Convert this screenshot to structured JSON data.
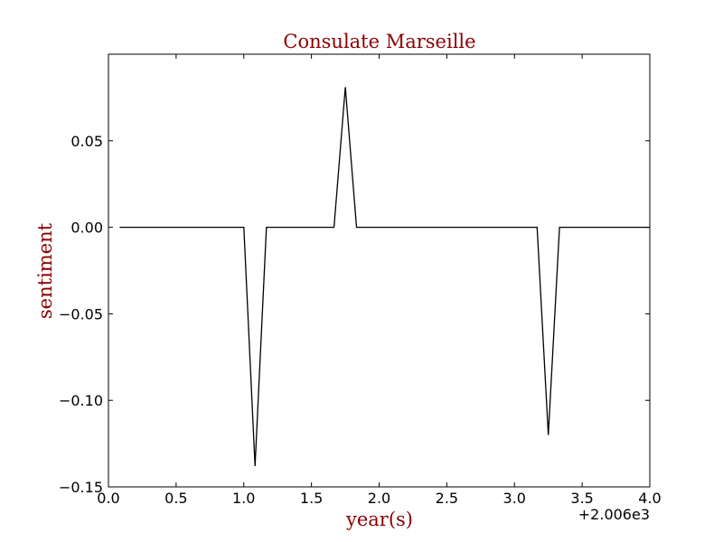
{
  "chart_data": {
    "type": "line",
    "title": "Consulate Marseille",
    "xlabel": "year(s)",
    "ylabel": "sentiment",
    "x_offset_label": "+2.006e3",
    "xlim": [
      0.0,
      4.0
    ],
    "ylim": [
      -0.15,
      0.1
    ],
    "x_tick_values": [
      0.0,
      0.5,
      1.0,
      1.5,
      2.0,
      2.5,
      3.0,
      3.5,
      4.0
    ],
    "x_tick_labels": [
      "0.0",
      "0.5",
      "1.0",
      "1.5",
      "2.0",
      "2.5",
      "3.0",
      "3.5",
      "4.0"
    ],
    "y_tick_values": [
      -0.15,
      -0.1,
      -0.05,
      0.0,
      0.05
    ],
    "y_tick_labels": [
      "−0.15",
      "−0.10",
      "−0.05",
      "0.00",
      "0.05"
    ],
    "grid": false,
    "line_color": "#000000",
    "text_color": "#8b0000",
    "series": [
      {
        "x": [
          0.083,
          1.0,
          1.083,
          1.167,
          1.667,
          1.75,
          1.833,
          3.167,
          3.25,
          3.333,
          4.0
        ],
        "y": [
          0.0,
          0.0,
          -0.138,
          0.0,
          0.0,
          0.081,
          0.0,
          0.0,
          -0.12,
          0.0,
          0.0
        ]
      }
    ]
  }
}
